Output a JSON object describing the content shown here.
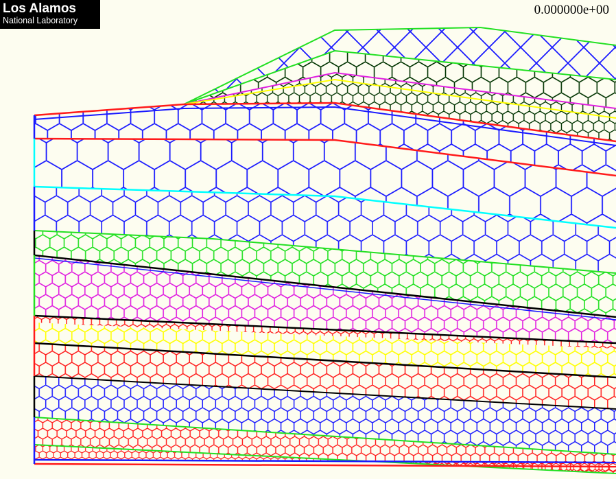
{
  "logo": {
    "title": "Los Alamos",
    "subtitle": "National Laboratory"
  },
  "readout": {
    "time_value": "0.000000e+00"
  },
  "mesh": {
    "background_color": "#fdfdf0",
    "layers": [
      {
        "name": "ridge-top",
        "color": "#1a1aff",
        "cell": 46,
        "style": "diamond"
      },
      {
        "name": "ridge-second",
        "color": "#003300",
        "cell": 30,
        "style": "hex"
      },
      {
        "name": "ridge-third",
        "color": "#003300",
        "cell": 18,
        "style": "hex"
      },
      {
        "name": "upper-blue",
        "color": "#1a1aff",
        "cell": 40,
        "style": "hex"
      },
      {
        "name": "blue-large",
        "color": "#1a1aff",
        "cell": 52,
        "style": "hex"
      },
      {
        "name": "blue-mixed",
        "color": "#1a1aff",
        "cell": 38,
        "style": "hex"
      },
      {
        "name": "green-upper",
        "color": "#22e022",
        "cell": 24,
        "style": "hex"
      },
      {
        "name": "magenta",
        "color": "#e020e0",
        "cell": 22,
        "style": "hex"
      },
      {
        "name": "red-thin",
        "color": "#ff1a1a",
        "cell": 14,
        "style": "hex"
      },
      {
        "name": "yellow",
        "color": "#ffff00",
        "cell": 22,
        "style": "hex"
      },
      {
        "name": "red-wide",
        "color": "#ff1a1a",
        "cell": 22,
        "style": "hex"
      },
      {
        "name": "blue-lower",
        "color": "#1a1aff",
        "cell": 22,
        "style": "hex"
      },
      {
        "name": "red-lower",
        "color": "#ff1a1a",
        "cell": 16,
        "style": "hex"
      },
      {
        "name": "red-bottom",
        "color": "#ff1a1a",
        "cell": 12,
        "style": "hex"
      }
    ],
    "boundary_colors": {
      "green": "#22e022",
      "red": "#ff1a1a",
      "cyan": "#00ffff",
      "black": "#000000",
      "blue": "#1a1aff",
      "magenta": "#e020e0",
      "yellow": "#ffff00"
    }
  }
}
